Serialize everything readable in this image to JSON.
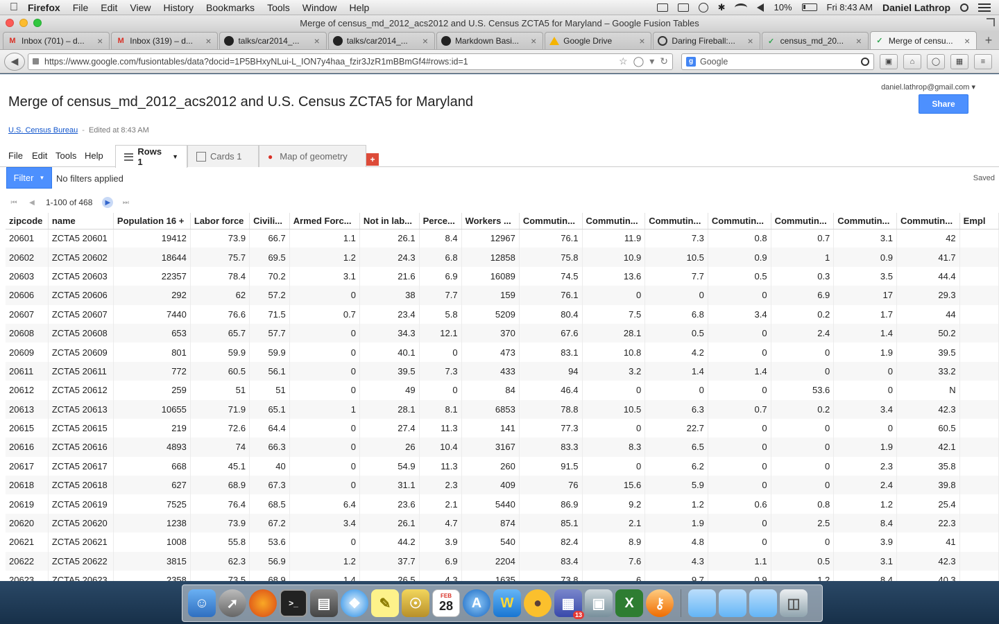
{
  "menubar": {
    "app_name": "Firefox",
    "menus": [
      "File",
      "Edit",
      "View",
      "History",
      "Bookmarks",
      "Tools",
      "Window",
      "Help"
    ],
    "battery": "10%",
    "clock": "Fri 8:43 AM",
    "user": "Daniel Lathrop"
  },
  "window": {
    "title": "Merge of census_md_2012_acs2012 and U.S. Census ZCTA5 for Maryland – Google Fusion Tables"
  },
  "tabs": [
    {
      "label": "Inbox (701) – d...",
      "icon": "gmail-icon"
    },
    {
      "label": "Inbox (319) – d...",
      "icon": "gmail-icon"
    },
    {
      "label": "talks/car2014_...",
      "icon": "github-icon"
    },
    {
      "label": "talks/car2014_...",
      "icon": "github-icon"
    },
    {
      "label": "Markdown Basi...",
      "icon": "github-icon"
    },
    {
      "label": "Google Drive",
      "icon": "drive-icon"
    },
    {
      "label": "Daring Fireball:...",
      "icon": "fireball-icon"
    },
    {
      "label": "census_md_20...",
      "icon": "fusion-icon"
    },
    {
      "label": "Merge of censu...",
      "icon": "fusion-icon"
    }
  ],
  "nav": {
    "url": "https://www.google.com/fusiontables/data?docid=1P5BHxyNLui-L_ION7y4haa_fzir3JzR1mBBmGf4#rows:id=1",
    "search_placeholder": "Google"
  },
  "page": {
    "account": "daniel.lathrop@gmail.com",
    "share_label": "Share",
    "title": "Merge of census_md_2012_acs2012 and U.S. Census ZCTA5 for Maryland",
    "source_link": "U.S. Census Bureau",
    "separator": "-",
    "edited": "Edited at 8:43 AM",
    "menus": {
      "file": "File",
      "edit": "Edit",
      "tools": "Tools",
      "help": "Help"
    },
    "view_tabs": {
      "rows": "Rows 1",
      "cards": "Cards 1",
      "map": "Map of geometry"
    },
    "add_tab": "+",
    "filter_label": "Filter",
    "filter_status": "No filters applied",
    "saved": "Saved",
    "pager_count": "1-100 of 468"
  },
  "table": {
    "columns": [
      "zipcode",
      "name",
      "Population 16 +",
      "Labor force",
      "Civili...",
      "Armed Forc...",
      "Not in lab...",
      "Perce...",
      "Workers ...",
      "Commutin...",
      "Commutin...",
      "Commutin...",
      "Commutin...",
      "Commutin...",
      "Commutin...",
      "Commutin...",
      "Empl"
    ],
    "rows": [
      [
        "20601",
        "ZCTA5 20601",
        "19412",
        "73.9",
        "66.7",
        "1.1",
        "26.1",
        "8.4",
        "12967",
        "76.1",
        "11.9",
        "7.3",
        "0.8",
        "0.7",
        "3.1",
        "42",
        ""
      ],
      [
        "20602",
        "ZCTA5 20602",
        "18644",
        "75.7",
        "69.5",
        "1.2",
        "24.3",
        "6.8",
        "12858",
        "75.8",
        "10.9",
        "10.5",
        "0.9",
        "1",
        "0.9",
        "41.7",
        ""
      ],
      [
        "20603",
        "ZCTA5 20603",
        "22357",
        "78.4",
        "70.2",
        "3.1",
        "21.6",
        "6.9",
        "16089",
        "74.5",
        "13.6",
        "7.7",
        "0.5",
        "0.3",
        "3.5",
        "44.4",
        ""
      ],
      [
        "20606",
        "ZCTA5 20606",
        "292",
        "62",
        "57.2",
        "0",
        "38",
        "7.7",
        "159",
        "76.1",
        "0",
        "0",
        "0",
        "6.9",
        "17",
        "29.3",
        ""
      ],
      [
        "20607",
        "ZCTA5 20607",
        "7440",
        "76.6",
        "71.5",
        "0.7",
        "23.4",
        "5.8",
        "5209",
        "80.4",
        "7.5",
        "6.8",
        "3.4",
        "0.2",
        "1.7",
        "44",
        ""
      ],
      [
        "20608",
        "ZCTA5 20608",
        "653",
        "65.7",
        "57.7",
        "0",
        "34.3",
        "12.1",
        "370",
        "67.6",
        "28.1",
        "0.5",
        "0",
        "2.4",
        "1.4",
        "50.2",
        ""
      ],
      [
        "20609",
        "ZCTA5 20609",
        "801",
        "59.9",
        "59.9",
        "0",
        "40.1",
        "0",
        "473",
        "83.1",
        "10.8",
        "4.2",
        "0",
        "0",
        "1.9",
        "39.5",
        ""
      ],
      [
        "20611",
        "ZCTA5 20611",
        "772",
        "60.5",
        "56.1",
        "0",
        "39.5",
        "7.3",
        "433",
        "94",
        "3.2",
        "1.4",
        "1.4",
        "0",
        "0",
        "33.2",
        ""
      ],
      [
        "20612",
        "ZCTA5 20612",
        "259",
        "51",
        "51",
        "0",
        "49",
        "0",
        "84",
        "46.4",
        "0",
        "0",
        "0",
        "53.6",
        "0",
        "N",
        ""
      ],
      [
        "20613",
        "ZCTA5 20613",
        "10655",
        "71.9",
        "65.1",
        "1",
        "28.1",
        "8.1",
        "6853",
        "78.8",
        "10.5",
        "6.3",
        "0.7",
        "0.2",
        "3.4",
        "42.3",
        ""
      ],
      [
        "20615",
        "ZCTA5 20615",
        "219",
        "72.6",
        "64.4",
        "0",
        "27.4",
        "11.3",
        "141",
        "77.3",
        "0",
        "22.7",
        "0",
        "0",
        "0",
        "60.5",
        ""
      ],
      [
        "20616",
        "ZCTA5 20616",
        "4893",
        "74",
        "66.3",
        "0",
        "26",
        "10.4",
        "3167",
        "83.3",
        "8.3",
        "6.5",
        "0",
        "0",
        "1.9",
        "42.1",
        ""
      ],
      [
        "20617",
        "ZCTA5 20617",
        "668",
        "45.1",
        "40",
        "0",
        "54.9",
        "11.3",
        "260",
        "91.5",
        "0",
        "6.2",
        "0",
        "0",
        "2.3",
        "35.8",
        ""
      ],
      [
        "20618",
        "ZCTA5 20618",
        "627",
        "68.9",
        "67.3",
        "0",
        "31.1",
        "2.3",
        "409",
        "76",
        "15.6",
        "5.9",
        "0",
        "0",
        "2.4",
        "39.8",
        ""
      ],
      [
        "20619",
        "ZCTA5 20619",
        "7525",
        "76.4",
        "68.5",
        "6.4",
        "23.6",
        "2.1",
        "5440",
        "86.9",
        "9.2",
        "1.2",
        "0.6",
        "0.8",
        "1.2",
        "25.4",
        ""
      ],
      [
        "20620",
        "ZCTA5 20620",
        "1238",
        "73.9",
        "67.2",
        "3.4",
        "26.1",
        "4.7",
        "874",
        "85.1",
        "2.1",
        "1.9",
        "0",
        "2.5",
        "8.4",
        "22.3",
        ""
      ],
      [
        "20621",
        "ZCTA5 20621",
        "1008",
        "55.8",
        "53.6",
        "0",
        "44.2",
        "3.9",
        "540",
        "82.4",
        "8.9",
        "4.8",
        "0",
        "0",
        "3.9",
        "41",
        ""
      ],
      [
        "20622",
        "ZCTA5 20622",
        "3815",
        "62.3",
        "56.9",
        "1.2",
        "37.7",
        "6.9",
        "2204",
        "83.4",
        "7.6",
        "4.3",
        "1.1",
        "0.5",
        "3.1",
        "42.3",
        ""
      ],
      [
        "20623",
        "ZCTA5 20623",
        "2358",
        "73.5",
        "68.9",
        "1.4",
        "26.5",
        "4.3",
        "1635",
        "73.8",
        "6",
        "9.7",
        "0.9",
        "1.2",
        "8.4",
        "40.3",
        ""
      ]
    ]
  },
  "dock": {
    "items": [
      "finder-icon",
      "launchpad-icon",
      "firefox-icon",
      "terminal-icon",
      "activity-monitor-icon",
      "safari-icon",
      "stickies-icon",
      "keychain-icon",
      "calendar-icon",
      "app-store-icon",
      "wunderlist-icon",
      "cyberduck-icon",
      "dashboard-icon",
      "preview-icon",
      "excel-icon",
      "keys-icon",
      "applications-folder-icon",
      "documents-folder-icon",
      "downloads-folder-icon",
      "trash-icon"
    ],
    "calendar_month": "FEB",
    "calendar_day": "28",
    "badge": "13"
  }
}
